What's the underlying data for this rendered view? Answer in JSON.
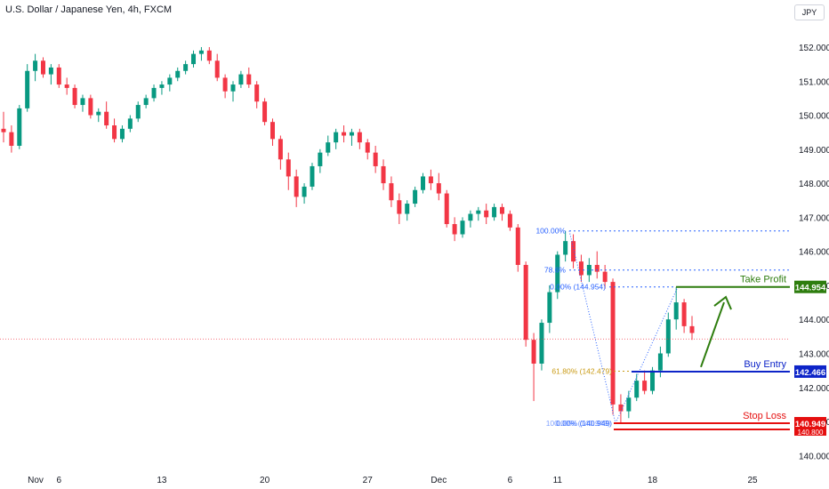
{
  "header": {
    "title": "U.S. Dollar / Japanese Yen, 4h, FXCM",
    "currency_button": "JPY"
  },
  "colors": {
    "up": "#089981",
    "down": "#f23645",
    "grid_text": "#131722",
    "take_profit": "#2e7d0e",
    "buy_entry": "#0d24c8",
    "stop_loss": "#e50f0f",
    "fib_blue": "#2962ff",
    "fib_gold": "#c99a14",
    "current_price": "#f23645"
  },
  "chart_data": {
    "type": "candlestick",
    "y_axis": {
      "ticks": [
        "152.000",
        "151.000",
        "150.000",
        "149.000",
        "148.000",
        "147.000",
        "146.000",
        "145.000",
        "144.000",
        "143.000",
        "142.000",
        "141.000",
        "140.000"
      ],
      "ylim": [
        139.8,
        152.6
      ]
    },
    "x_axis": {
      "ticks": [
        "Nov",
        "6",
        "13",
        "20",
        "27",
        "Dec",
        "6",
        "11",
        "18",
        "25"
      ]
    },
    "candles": [
      [
        149.6,
        150.1,
        149.2,
        149.5
      ],
      [
        149.5,
        149.7,
        148.9,
        149.1
      ],
      [
        149.1,
        150.3,
        149.0,
        150.2
      ],
      [
        150.2,
        151.5,
        150.1,
        151.3
      ],
      [
        151.3,
        151.8,
        151.0,
        151.6
      ],
      [
        151.6,
        151.7,
        151.1,
        151.2
      ],
      [
        151.2,
        151.5,
        150.9,
        151.4
      ],
      [
        151.4,
        151.5,
        150.8,
        150.9
      ],
      [
        150.9,
        151.1,
        150.6,
        150.8
      ],
      [
        150.8,
        150.9,
        150.2,
        150.3
      ],
      [
        150.3,
        150.6,
        150.1,
        150.5
      ],
      [
        150.5,
        150.6,
        149.9,
        150.0
      ],
      [
        150.0,
        150.2,
        149.8,
        150.1
      ],
      [
        150.1,
        150.4,
        149.6,
        149.7
      ],
      [
        149.7,
        149.9,
        149.2,
        149.3
      ],
      [
        149.3,
        149.7,
        149.2,
        149.6
      ],
      [
        149.6,
        150.0,
        149.5,
        149.9
      ],
      [
        149.9,
        150.4,
        149.8,
        150.3
      ],
      [
        150.3,
        150.6,
        150.2,
        150.5
      ],
      [
        150.5,
        150.9,
        150.4,
        150.8
      ],
      [
        150.8,
        151.0,
        150.6,
        150.9
      ],
      [
        150.9,
        151.2,
        150.7,
        151.1
      ],
      [
        151.1,
        151.4,
        151.0,
        151.3
      ],
      [
        151.3,
        151.6,
        151.2,
        151.5
      ],
      [
        151.5,
        151.9,
        151.4,
        151.8
      ],
      [
        151.8,
        152.0,
        151.6,
        151.9
      ],
      [
        151.9,
        152.0,
        151.5,
        151.6
      ],
      [
        151.6,
        151.8,
        151.0,
        151.1
      ],
      [
        151.1,
        151.2,
        150.5,
        150.7
      ],
      [
        150.7,
        151.0,
        150.4,
        150.9
      ],
      [
        150.9,
        151.3,
        150.8,
        151.2
      ],
      [
        151.2,
        151.4,
        150.8,
        150.9
      ],
      [
        150.9,
        151.0,
        150.2,
        150.4
      ],
      [
        150.4,
        150.5,
        149.7,
        149.8
      ],
      [
        149.8,
        149.9,
        149.1,
        149.3
      ],
      [
        149.3,
        149.4,
        148.4,
        148.7
      ],
      [
        148.7,
        148.9,
        147.8,
        148.2
      ],
      [
        148.2,
        148.4,
        147.3,
        147.6
      ],
      [
        147.6,
        148.0,
        147.4,
        147.9
      ],
      [
        147.9,
        148.6,
        147.8,
        148.5
      ],
      [
        148.5,
        149.0,
        148.3,
        148.9
      ],
      [
        148.9,
        149.4,
        148.8,
        149.2
      ],
      [
        149.2,
        149.6,
        149.0,
        149.5
      ],
      [
        149.5,
        149.7,
        149.2,
        149.4
      ],
      [
        149.4,
        149.6,
        149.1,
        149.5
      ],
      [
        149.5,
        149.6,
        149.0,
        149.2
      ],
      [
        149.2,
        149.3,
        148.7,
        148.9
      ],
      [
        148.9,
        149.1,
        148.3,
        148.5
      ],
      [
        148.5,
        148.7,
        147.8,
        148.0
      ],
      [
        148.0,
        148.2,
        147.3,
        147.5
      ],
      [
        147.5,
        147.7,
        146.8,
        147.1
      ],
      [
        147.1,
        147.5,
        146.9,
        147.4
      ],
      [
        147.4,
        147.9,
        147.3,
        147.8
      ],
      [
        147.8,
        148.3,
        147.7,
        148.2
      ],
      [
        148.2,
        148.4,
        147.8,
        148.0
      ],
      [
        148.0,
        148.3,
        147.5,
        147.7
      ],
      [
        147.7,
        147.8,
        146.7,
        146.8
      ],
      [
        146.8,
        147.0,
        146.3,
        146.5
      ],
      [
        146.5,
        147.0,
        146.4,
        146.9
      ],
      [
        146.9,
        147.2,
        146.7,
        147.1
      ],
      [
        147.1,
        147.3,
        146.9,
        147.2
      ],
      [
        147.2,
        147.4,
        146.8,
        147.0
      ],
      [
        147.0,
        147.4,
        146.9,
        147.3
      ],
      [
        147.3,
        147.4,
        146.9,
        147.1
      ],
      [
        147.1,
        147.2,
        146.6,
        146.7
      ],
      [
        146.7,
        146.8,
        145.4,
        145.6
      ],
      [
        145.6,
        145.7,
        143.2,
        143.4
      ],
      [
        143.4,
        143.6,
        141.6,
        142.7
      ],
      [
        142.7,
        144.0,
        142.5,
        143.9
      ],
      [
        143.9,
        145.0,
        143.6,
        144.8
      ],
      [
        144.8,
        146.0,
        144.6,
        145.9
      ],
      [
        145.9,
        146.6,
        145.7,
        146.3
      ],
      [
        146.3,
        146.5,
        145.5,
        145.7
      ],
      [
        145.7,
        145.9,
        145.1,
        145.3
      ],
      [
        145.3,
        145.8,
        145.1,
        145.6
      ],
      [
        145.6,
        146.0,
        145.2,
        145.4
      ],
      [
        145.4,
        145.6,
        144.9,
        145.1
      ],
      [
        145.1,
        145.2,
        141.2,
        141.5
      ],
      [
        141.5,
        141.8,
        140.95,
        141.3
      ],
      [
        141.3,
        141.9,
        141.1,
        141.7
      ],
      [
        141.7,
        142.4,
        141.6,
        142.2
      ],
      [
        142.2,
        142.5,
        141.8,
        141.9
      ],
      [
        141.9,
        142.6,
        141.8,
        142.5
      ],
      [
        142.5,
        143.2,
        142.3,
        143.0
      ],
      [
        143.0,
        144.2,
        142.9,
        144.0
      ],
      [
        144.0,
        144.95,
        143.7,
        144.5
      ],
      [
        144.5,
        144.6,
        143.6,
        143.8
      ],
      [
        143.8,
        144.1,
        143.4,
        143.6
      ]
    ],
    "current_price": 143.42,
    "levels": [
      {
        "name": "Take Profit",
        "value": 144.954,
        "label": "144.954"
      },
      {
        "name": "Buy Entry",
        "value": 142.466,
        "label": "142.466"
      },
      {
        "name": "Stop Loss",
        "value": 140.949,
        "label": "140.949"
      }
    ],
    "fib_upper": [
      {
        "label": "100.00%",
        "value": 146.6
      },
      {
        "label": "78.6%",
        "value": 145.45
      },
      {
        "label": "0.00% (144.954)",
        "value": 144.954
      }
    ],
    "fib_lower": [
      {
        "label": "61.80% (142.479)",
        "value": 142.479
      },
      {
        "label": "0.00% (140.949)",
        "value": 140.949
      },
      {
        "label": "100.00% (140.949)",
        "value": 140.949
      }
    ],
    "stop_loss_hidden_label": "140.800"
  }
}
